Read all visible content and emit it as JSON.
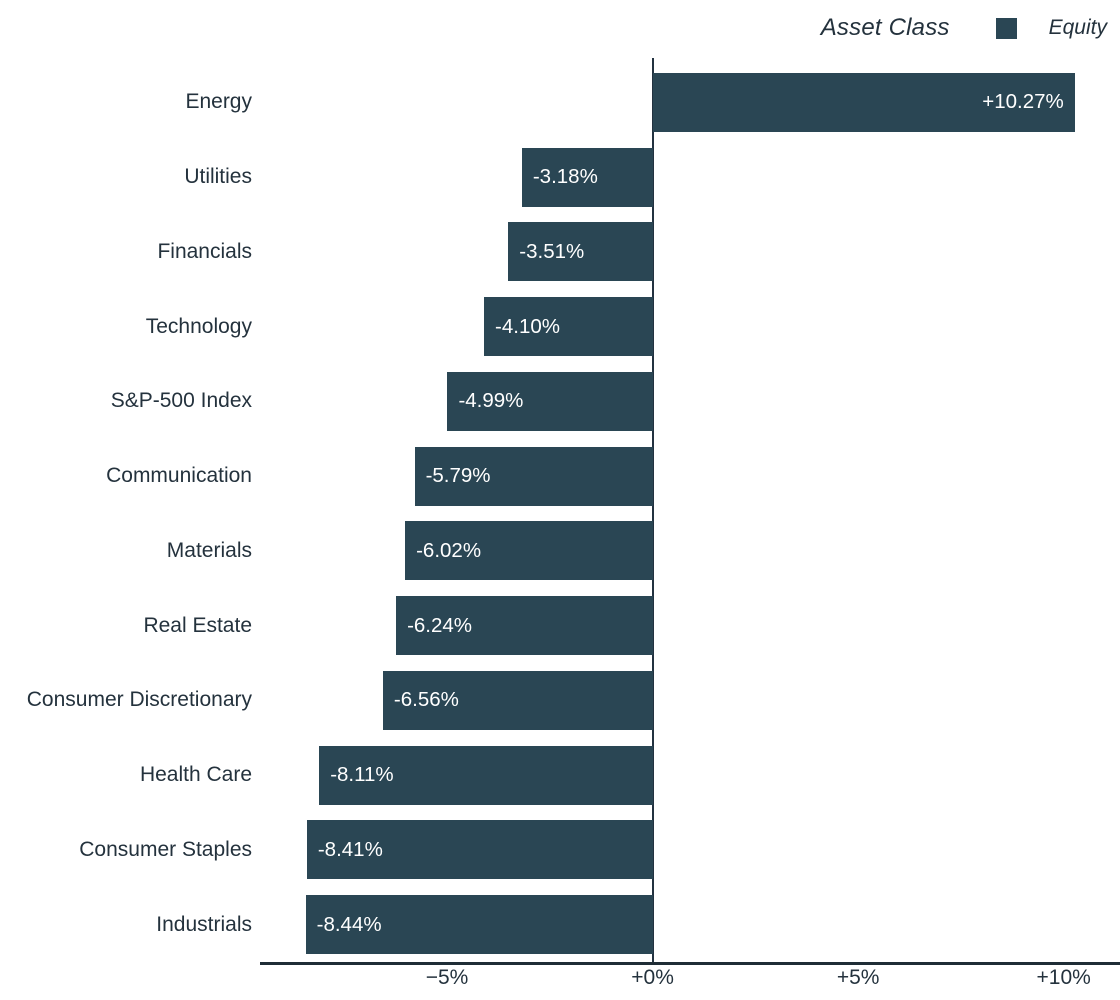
{
  "legend": {
    "title": "Asset Class",
    "items": [
      {
        "label": "Equity",
        "color": "#2a4654"
      }
    ]
  },
  "chart_data": {
    "type": "bar",
    "orientation": "horizontal",
    "title": "",
    "xlabel": "",
    "ylabel": "",
    "series_name": "Equity",
    "categories": [
      "Energy",
      "Utilities",
      "Financials",
      "Technology",
      "S&P-500 Index",
      "Communication",
      "Materials",
      "Real Estate",
      "Consumer Discretionary",
      "Health Care",
      "Consumer Staples",
      "Industrials"
    ],
    "values": [
      10.27,
      -3.18,
      -3.51,
      -4.1,
      -4.99,
      -5.79,
      -6.02,
      -6.24,
      -6.56,
      -8.11,
      -8.41,
      -8.44
    ],
    "bar_labels": [
      "+10.27%",
      "-3.18%",
      "-3.51%",
      "-4.10%",
      "-4.99%",
      "-5.79%",
      "-6.02%",
      "-6.24%",
      "-6.56%",
      "-8.11%",
      "-8.41%",
      "-8.44%"
    ],
    "x_ticks": [
      -5,
      0,
      5,
      10
    ],
    "x_tick_labels": [
      "−5%",
      "+0%",
      "+5%",
      "+10%"
    ],
    "xlim": [
      -9.55,
      11.37
    ],
    "grid": false,
    "zeroline": true,
    "legend_position": "top-right",
    "bar_color": "#2a4654",
    "inside_label_color": "#ffffff",
    "text_color": "#24323d"
  }
}
